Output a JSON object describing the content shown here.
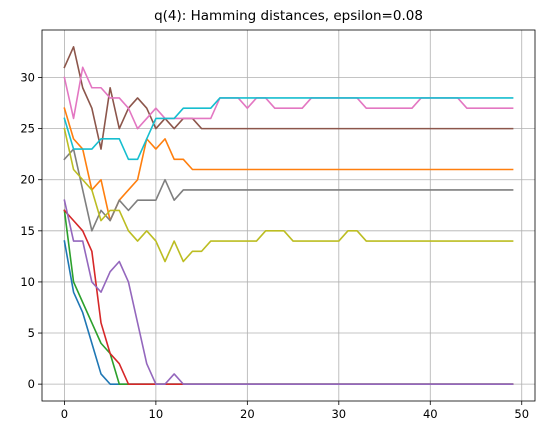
{
  "chart_data": {
    "type": "line",
    "title": "q(4): Hamming distances, epsilon=0.08",
    "xlabel": "",
    "ylabel": "",
    "xlim": [
      -2.45,
      51.45
    ],
    "ylim": [
      -1.65,
      34.65
    ],
    "xticks": [
      0,
      10,
      20,
      30,
      40,
      50
    ],
    "yticks": [
      0,
      5,
      10,
      15,
      20,
      25,
      30
    ],
    "xtick_labels": [
      "0",
      "10",
      "20",
      "30",
      "40",
      "50"
    ],
    "ytick_labels": [
      "0",
      "5",
      "10",
      "15",
      "20",
      "25",
      "30"
    ],
    "grid": true,
    "legend": "none",
    "x": [
      0,
      1,
      2,
      3,
      4,
      5,
      6,
      7,
      8,
      9,
      10,
      11,
      12,
      13,
      14,
      15,
      16,
      17,
      18,
      19,
      20,
      21,
      22,
      23,
      24,
      25,
      26,
      27,
      28,
      29,
      30,
      31,
      32,
      33,
      34,
      35,
      36,
      37,
      38,
      39,
      40,
      41,
      42,
      43,
      44,
      45,
      46,
      47,
      48,
      49
    ],
    "series": [
      {
        "color": "#1f77b4",
        "values": [
          14,
          9,
          7,
          4,
          1,
          0,
          0,
          0,
          0,
          0,
          0,
          0,
          0,
          0,
          0,
          0,
          0,
          0,
          0,
          0,
          0,
          0,
          0,
          0,
          0,
          0,
          0,
          0,
          0,
          0,
          0,
          0,
          0,
          0,
          0,
          0,
          0,
          0,
          0,
          0,
          0,
          0,
          0,
          0,
          0,
          0,
          0,
          0,
          0,
          0
        ]
      },
      {
        "color": "#ff7f0e",
        "values": [
          27,
          24,
          23,
          19,
          20,
          16,
          18,
          19,
          20,
          24,
          23,
          24,
          22,
          22,
          21,
          21,
          21,
          21,
          21,
          21,
          21,
          21,
          21,
          21,
          21,
          21,
          21,
          21,
          21,
          21,
          21,
          21,
          21,
          21,
          21,
          21,
          21,
          21,
          21,
          21,
          21,
          21,
          21,
          21,
          21,
          21,
          21,
          21,
          21,
          21
        ]
      },
      {
        "color": "#2ca02c",
        "values": [
          17,
          10,
          8,
          6,
          4,
          3,
          0,
          0,
          0,
          0,
          0,
          0,
          0,
          0,
          0,
          0,
          0,
          0,
          0,
          0,
          0,
          0,
          0,
          0,
          0,
          0,
          0,
          0,
          0,
          0,
          0,
          0,
          0,
          0,
          0,
          0,
          0,
          0,
          0,
          0,
          0,
          0,
          0,
          0,
          0,
          0,
          0,
          0,
          0,
          0
        ]
      },
      {
        "color": "#d62728",
        "values": [
          17,
          16,
          15,
          13,
          6,
          3,
          2,
          0,
          0,
          0,
          0,
          0,
          0,
          0,
          0,
          0,
          0,
          0,
          0,
          0,
          0,
          0,
          0,
          0,
          0,
          0,
          0,
          0,
          0,
          0,
          0,
          0,
          0,
          0,
          0,
          0,
          0,
          0,
          0,
          0,
          0,
          0,
          0,
          0,
          0,
          0,
          0,
          0,
          0,
          0
        ]
      },
      {
        "color": "#9467bd",
        "values": [
          18,
          14,
          14,
          10,
          9,
          11,
          12,
          10,
          6,
          2,
          0,
          0,
          1,
          0,
          0,
          0,
          0,
          0,
          0,
          0,
          0,
          0,
          0,
          0,
          0,
          0,
          0,
          0,
          0,
          0,
          0,
          0,
          0,
          0,
          0,
          0,
          0,
          0,
          0,
          0,
          0,
          0,
          0,
          0,
          0,
          0,
          0,
          0,
          0,
          0
        ]
      },
      {
        "color": "#8c564b",
        "values": [
          31,
          33,
          29,
          27,
          23,
          29,
          25,
          27,
          28,
          27,
          25,
          26,
          25,
          26,
          26,
          25,
          25,
          25,
          25,
          25,
          25,
          25,
          25,
          25,
          25,
          25,
          25,
          25,
          25,
          25,
          25,
          25,
          25,
          25,
          25,
          25,
          25,
          25,
          25,
          25,
          25,
          25,
          25,
          25,
          25,
          25,
          25,
          25,
          25,
          25
        ]
      },
      {
        "color": "#e377c2",
        "values": [
          30,
          26,
          31,
          29,
          29,
          28,
          28,
          27,
          25,
          26,
          27,
          26,
          26,
          26,
          26,
          26,
          26,
          28,
          28,
          28,
          27,
          28,
          28,
          27,
          27,
          27,
          27,
          28,
          28,
          28,
          28,
          28,
          28,
          27,
          27,
          27,
          27,
          27,
          27,
          28,
          28,
          28,
          28,
          28,
          27,
          27,
          27,
          27,
          27,
          27
        ]
      },
      {
        "color": "#7f7f7f",
        "values": [
          22,
          23,
          19,
          15,
          17,
          16,
          18,
          17,
          18,
          18,
          18,
          20,
          18,
          19,
          19,
          19,
          19,
          19,
          19,
          19,
          19,
          19,
          19,
          19,
          19,
          19,
          19,
          19,
          19,
          19,
          19,
          19,
          19,
          19,
          19,
          19,
          19,
          19,
          19,
          19,
          19,
          19,
          19,
          19,
          19,
          19,
          19,
          19,
          19,
          19
        ]
      },
      {
        "color": "#bcbd22",
        "values": [
          25,
          21,
          20,
          19,
          16,
          17,
          17,
          15,
          14,
          15,
          14,
          12,
          14,
          12,
          13,
          13,
          14,
          14,
          14,
          14,
          14,
          14,
          15,
          15,
          15,
          14,
          14,
          14,
          14,
          14,
          14,
          15,
          15,
          14,
          14,
          14,
          14,
          14,
          14,
          14,
          14,
          14,
          14,
          14,
          14,
          14,
          14,
          14,
          14,
          14
        ]
      },
      {
        "color": "#17becf",
        "values": [
          26,
          23,
          23,
          23,
          24,
          24,
          24,
          22,
          22,
          24,
          26,
          26,
          26,
          27,
          27,
          27,
          27,
          28,
          28,
          28,
          28,
          28,
          28,
          28,
          28,
          28,
          28,
          28,
          28,
          28,
          28,
          28,
          28,
          28,
          28,
          28,
          28,
          28,
          28,
          28,
          28,
          28,
          28,
          28,
          28,
          28,
          28,
          28,
          28,
          28
        ]
      }
    ]
  }
}
